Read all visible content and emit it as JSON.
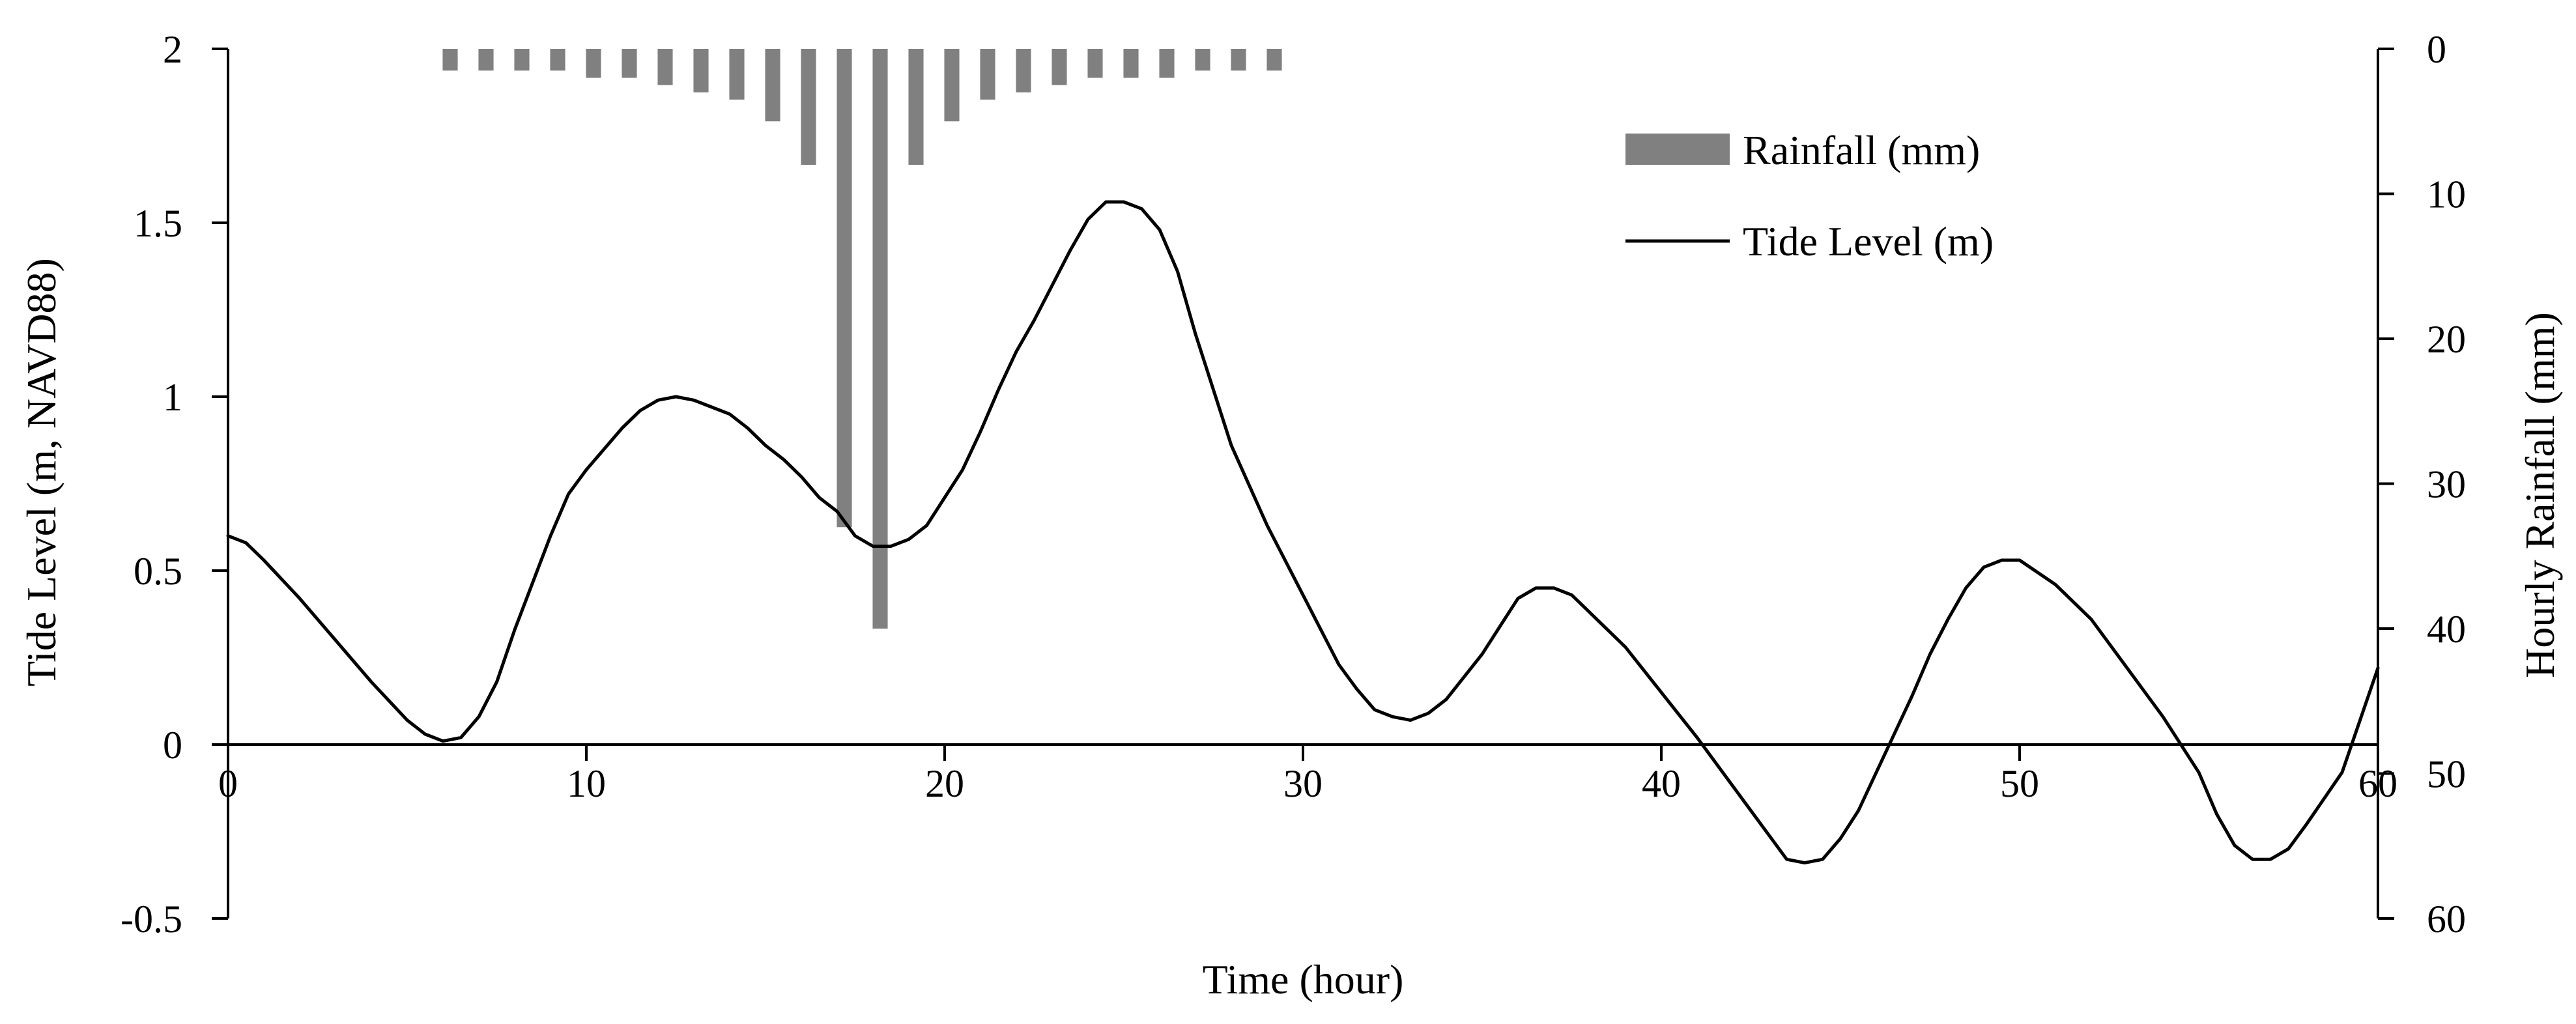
{
  "chart_data": {
    "type": "bar+line",
    "x_label": "Time (hour)",
    "y_left_label": "Tide Level (m, NAVD88)",
    "y_right_label": "Hourly Rainfall (mm)",
    "x_range": [
      0,
      60
    ],
    "y_left_range": [
      -0.5,
      2
    ],
    "y_right_range": [
      0,
      60
    ],
    "y_right_inverted": true,
    "x_ticks": [
      "0",
      "10",
      "20",
      "30",
      "40",
      "50",
      "60"
    ],
    "x_tick_values": [
      0,
      10,
      20,
      30,
      40,
      50,
      60
    ],
    "y_left_ticks": [
      "2",
      "1.5",
      "1",
      "0.5",
      "0",
      "-0.5"
    ],
    "y_left_tick_values": [
      2,
      1.5,
      1,
      0.5,
      0,
      -0.5
    ],
    "y_right_ticks": [
      "0",
      "10",
      "20",
      "30",
      "40",
      "50",
      "60"
    ],
    "y_right_tick_values": [
      0,
      10,
      20,
      30,
      40,
      50,
      60
    ],
    "legend": [
      {
        "name": "Rainfall (mm)",
        "kind": "bar",
        "color": "#808080"
      },
      {
        "name": "Tide Level (m)",
        "kind": "line",
        "color": "#000000"
      }
    ],
    "series": [
      {
        "name": "Rainfall (mm)",
        "type": "bar",
        "axis": "right",
        "color": "#808080",
        "x": [
          6.2,
          7.2,
          8.2,
          9.2,
          10.2,
          11.2,
          12.2,
          13.2,
          14.2,
          15.2,
          16.2,
          17.2,
          18.2,
          19.2,
          20.2,
          21.2,
          22.2,
          23.2,
          24.2,
          25.2,
          26.2,
          27.2,
          28.2,
          29.2
        ],
        "values": [
          1.5,
          1.5,
          1.5,
          1.5,
          2,
          2,
          2.5,
          3,
          3.5,
          5,
          8,
          33,
          40,
          8,
          5,
          3.5,
          3,
          2.5,
          2,
          2,
          2,
          1.5,
          1.5,
          1.5
        ]
      },
      {
        "name": "Tide Level (m)",
        "type": "line",
        "axis": "left",
        "color": "#000000",
        "x": [
          0,
          0.5,
          1,
          2,
          3,
          4,
          5,
          5.5,
          6,
          6.5,
          7,
          7.5,
          8,
          9,
          9.5,
          10,
          11,
          11.5,
          12,
          12.5,
          13,
          13.5,
          14,
          14.5,
          15,
          15.5,
          16,
          16.5,
          17,
          17.5,
          18,
          18.5,
          19,
          19.5,
          20,
          20.5,
          21,
          21.5,
          22,
          22.5,
          23,
          23.5,
          24,
          24.5,
          25,
          25.5,
          26,
          26.5,
          27,
          28,
          29,
          30,
          31,
          31.5,
          32,
          32.5,
          33,
          33.5,
          34,
          35,
          35.5,
          36,
          36.5,
          37,
          37.5,
          38,
          39,
          40,
          41,
          42,
          43,
          43.5,
          44,
          44.5,
          45,
          45.5,
          46,
          47,
          47.5,
          48,
          48.5,
          49,
          49.5,
          50,
          51,
          52,
          53,
          54,
          55,
          55.5,
          56,
          56.5,
          57,
          57.5,
          58,
          59,
          60
        ],
        "values": [
          0.6,
          0.58,
          0.53,
          0.42,
          0.3,
          0.18,
          0.07,
          0.03,
          0.01,
          0.02,
          0.08,
          0.18,
          0.33,
          0.6,
          0.72,
          0.79,
          0.91,
          0.96,
          0.99,
          1.0,
          0.99,
          0.97,
          0.95,
          0.91,
          0.86,
          0.82,
          0.77,
          0.71,
          0.67,
          0.6,
          0.57,
          0.57,
          0.59,
          0.63,
          0.71,
          0.79,
          0.9,
          1.02,
          1.13,
          1.22,
          1.32,
          1.42,
          1.51,
          1.56,
          1.56,
          1.54,
          1.48,
          1.36,
          1.18,
          0.86,
          0.63,
          0.43,
          0.23,
          0.16,
          0.1,
          0.08,
          0.07,
          0.09,
          0.13,
          0.26,
          0.34,
          0.42,
          0.45,
          0.45,
          0.43,
          0.38,
          0.28,
          0.15,
          0.02,
          -0.12,
          -0.26,
          -0.33,
          -0.34,
          -0.33,
          -0.27,
          -0.19,
          -0.08,
          0.14,
          0.26,
          0.36,
          0.45,
          0.51,
          0.53,
          0.53,
          0.46,
          0.36,
          0.22,
          0.08,
          -0.08,
          -0.2,
          -0.29,
          -0.33,
          -0.33,
          -0.3,
          -0.23,
          -0.08,
          0.22
        ]
      }
    ]
  }
}
